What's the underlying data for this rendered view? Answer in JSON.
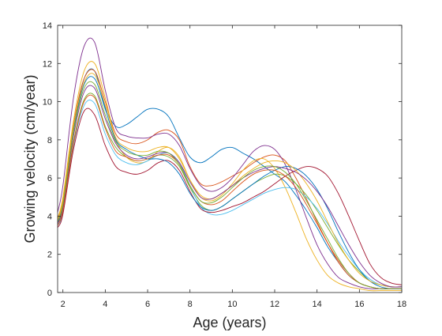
{
  "chart_data": {
    "type": "line",
    "title": "",
    "xlabel": "Age (years)",
    "ylabel": "Growing velocity (cm/year)",
    "xlim": [
      1.75,
      18
    ],
    "ylim": [
      0,
      14
    ],
    "xticks": [
      2,
      4,
      6,
      8,
      10,
      12,
      14,
      16,
      18
    ],
    "yticks": [
      0,
      2,
      4,
      6,
      8,
      10,
      12,
      14
    ],
    "grid": false,
    "box": true,
    "legend": "none",
    "series_colors": [
      "#0072BD",
      "#D95319",
      "#EDB120",
      "#7E2F8E",
      "#77AC30",
      "#4DBEEE",
      "#A2142F"
    ],
    "x": [
      1.75,
      2,
      2.5,
      3,
      3.5,
      4,
      4.5,
      5,
      5.5,
      6,
      6.5,
      7,
      7.5,
      8,
      8.5,
      9,
      9.5,
      10,
      10.5,
      11,
      11.5,
      12,
      12.5,
      13,
      13.5,
      14,
      14.5,
      15,
      15.5,
      16,
      16.5,
      17,
      17.5,
      18
    ],
    "series": [
      {
        "values": [
          3.6,
          4.6,
          8.6,
          11.2,
          11.6,
          9.7,
          8.7,
          8.8,
          9.2,
          9.6,
          9.6,
          9.2,
          8.1,
          7.1,
          6.8,
          7.1,
          7.5,
          7.6,
          7.3,
          7.0,
          6.6,
          6.2,
          5.8,
          5.1,
          4.3,
          3.4,
          2.4,
          1.6,
          0.9,
          0.5,
          0.3,
          0.2,
          0.2,
          0.2
        ]
      },
      {
        "values": [
          3.8,
          4.9,
          8.8,
          11.2,
          11.6,
          10.0,
          8.3,
          7.9,
          7.8,
          8.0,
          8.4,
          8.5,
          8.0,
          6.6,
          5.7,
          5.6,
          5.8,
          6.1,
          6.4,
          6.8,
          7.1,
          7.2,
          6.9,
          6.0,
          4.9,
          3.7,
          2.6,
          1.6,
          0.9,
          0.5,
          0.3,
          0.2,
          0.2,
          0.2
        ]
      },
      {
        "values": [
          3.9,
          5.0,
          9.0,
          11.6,
          12.0,
          10.2,
          8.0,
          7.1,
          6.8,
          6.9,
          7.4,
          7.6,
          7.1,
          5.9,
          5.0,
          4.8,
          5.1,
          5.7,
          6.4,
          6.9,
          7.0,
          6.5,
          5.5,
          4.2,
          2.8,
          1.7,
          0.9,
          0.5,
          0.3,
          0.2,
          0.1,
          0.1,
          0.1,
          0.1
        ]
      },
      {
        "values": [
          4.2,
          5.6,
          10.2,
          12.9,
          13.1,
          10.6,
          8.6,
          8.2,
          8.1,
          8.1,
          8.3,
          8.3,
          7.7,
          6.5,
          5.6,
          5.3,
          5.5,
          6.0,
          6.7,
          7.4,
          7.7,
          7.5,
          6.7,
          5.4,
          3.9,
          2.5,
          1.5,
          0.8,
          0.5,
          0.3,
          0.2,
          0.2,
          0.2,
          0.2
        ]
      },
      {
        "values": [
          3.6,
          4.4,
          7.9,
          10.1,
          10.3,
          8.7,
          7.6,
          7.1,
          6.9,
          7.0,
          7.2,
          7.1,
          6.6,
          5.5,
          4.6,
          4.3,
          4.5,
          4.9,
          5.3,
          5.7,
          6.0,
          6.2,
          6.1,
          5.7,
          5.1,
          4.3,
          3.4,
          2.5,
          1.7,
          1.1,
          0.6,
          0.4,
          0.3,
          0.3
        ]
      },
      {
        "values": [
          3.5,
          4.2,
          7.7,
          9.8,
          9.9,
          8.3,
          7.2,
          6.8,
          6.7,
          6.9,
          7.2,
          7.3,
          6.8,
          5.6,
          4.5,
          4.1,
          4.1,
          4.3,
          4.6,
          4.9,
          5.2,
          5.4,
          5.5,
          5.4,
          5.0,
          4.4,
          3.6,
          2.7,
          1.9,
          1.2,
          0.7,
          0.4,
          0.3,
          0.3
        ]
      },
      {
        "values": [
          3.4,
          4.1,
          7.5,
          9.5,
          9.3,
          7.7,
          6.6,
          6.3,
          6.2,
          6.4,
          6.8,
          6.9,
          6.4,
          5.3,
          4.4,
          4.2,
          4.3,
          4.5,
          4.7,
          5.0,
          5.3,
          5.7,
          6.1,
          6.4,
          6.6,
          6.5,
          6.1,
          5.2,
          4.0,
          2.7,
          1.5,
          0.8,
          0.5,
          0.4
        ]
      },
      {
        "values": [
          3.7,
          4.7,
          8.5,
          10.9,
          11.2,
          9.6,
          8.0,
          7.5,
          7.2,
          7.0,
          7.0,
          6.8,
          6.2,
          5.2,
          4.5,
          4.3,
          4.5,
          4.9,
          5.3,
          5.7,
          6.1,
          6.4,
          6.6,
          6.5,
          6.1,
          5.4,
          4.4,
          3.2,
          2.1,
          1.2,
          0.6,
          0.3,
          0.2,
          0.2
        ]
      },
      {
        "values": [
          3.5,
          4.3,
          7.8,
          10.0,
          10.2,
          8.6,
          7.4,
          7.1,
          6.9,
          7.0,
          7.2,
          7.2,
          6.7,
          5.6,
          4.8,
          4.6,
          4.8,
          5.3,
          5.8,
          6.2,
          6.4,
          6.4,
          6.1,
          5.5,
          4.6,
          3.6,
          2.6,
          1.7,
          1.0,
          0.5,
          0.3,
          0.2,
          0.2,
          0.2
        ]
      },
      {
        "values": [
          3.8,
          4.8,
          8.7,
          11.0,
          11.4,
          9.8,
          8.1,
          7.6,
          7.4,
          7.4,
          7.6,
          7.6,
          7.0,
          5.9,
          5.1,
          4.9,
          5.2,
          5.6,
          6.1,
          6.5,
          6.8,
          6.9,
          6.8,
          6.4,
          5.7,
          4.8,
          3.7,
          2.6,
          1.7,
          1.0,
          0.6,
          0.4,
          0.3,
          0.3
        ]
      },
      {
        "values": [
          3.6,
          4.5,
          8.2,
          10.5,
          10.7,
          9.1,
          7.8,
          7.2,
          7.0,
          7.1,
          7.3,
          7.3,
          6.8,
          5.8,
          5.0,
          4.9,
          5.2,
          5.6,
          6.0,
          6.3,
          6.5,
          6.6,
          6.5,
          6.3,
          5.9,
          5.3,
          4.5,
          3.5,
          2.5,
          1.6,
          0.9,
          0.5,
          0.3,
          0.3
        ]
      },
      {
        "values": [
          3.7,
          4.6,
          8.4,
          10.7,
          10.9,
          9.3,
          7.9,
          7.4,
          7.2,
          7.2,
          7.4,
          7.3,
          6.7,
          5.6,
          4.8,
          4.7,
          5.0,
          5.5,
          6.0,
          6.4,
          6.6,
          6.6,
          6.3,
          5.7,
          4.8,
          3.8,
          2.8,
          1.8,
          1.0,
          0.5,
          0.3,
          0.2,
          0.2,
          0.2
        ]
      }
    ]
  }
}
